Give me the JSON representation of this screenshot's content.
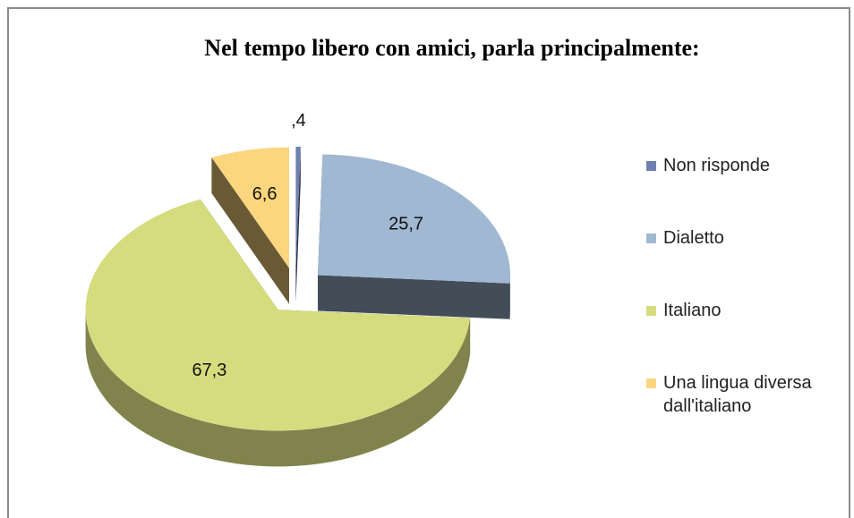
{
  "chart_data": {
    "type": "pie",
    "title": "Nel tempo libero con amici, parla principalmente:",
    "categories": [
      "Non risponde",
      "Dialetto",
      "Italiano",
      "Una lingua diversa dall'italiano"
    ],
    "values": [
      0.4,
      25.7,
      67.3,
      6.6
    ],
    "value_labels": [
      ",4",
      "25,7",
      "67,3",
      "6,6"
    ],
    "colors": [
      "#6f7fb0",
      "#a0b8d2",
      "#d5dc7e",
      "#fbd67f"
    ],
    "legend": "right"
  }
}
